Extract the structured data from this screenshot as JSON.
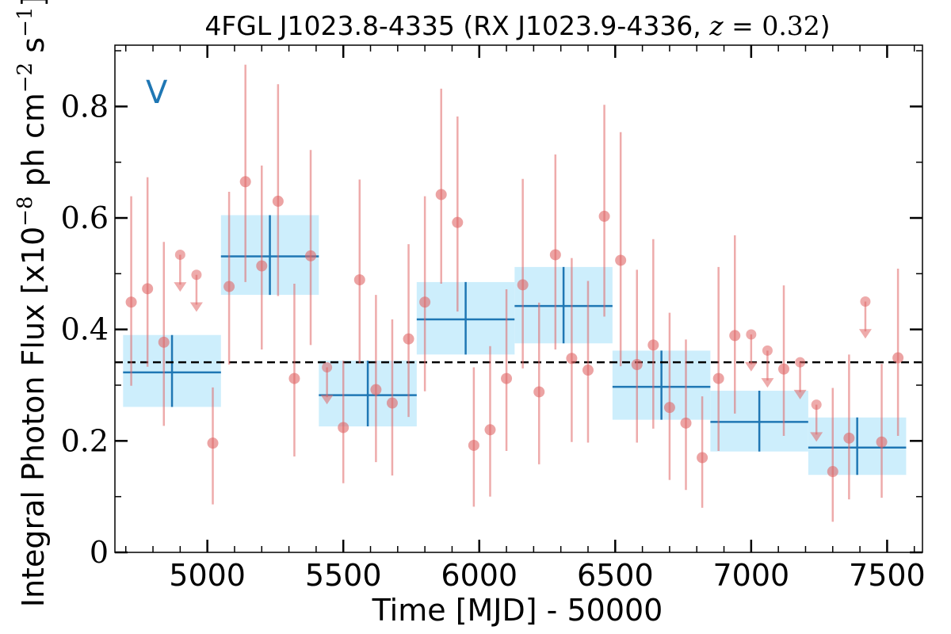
{
  "chart_data": {
    "type": "scatter",
    "title_parts": {
      "main": "4FGL J1023.8-4335 (RX J1023.9-4336, ",
      "z_var": "z",
      "z_eq": " = 0.32",
      "close": ")"
    },
    "xlabel": "Time [MJD] - 50000",
    "ylabel_parts": {
      "pre": "Integral Photon Flux [x10",
      "exp1": "−8",
      "mid": " ph cm",
      "exp2": "−2",
      "mid2": " s",
      "exp3": "−1",
      "post": "]"
    },
    "panel_label": "V",
    "xlim": [
      4660,
      7630
    ],
    "ylim": [
      0,
      0.91
    ],
    "x_ticks": [
      5000,
      5500,
      6000,
      6500,
      7000,
      7500
    ],
    "x_tick_labels": [
      "5000",
      "5500",
      "6000",
      "6500",
      "7000",
      "7500"
    ],
    "y_ticks": [
      0,
      0.2,
      0.4,
      0.6,
      0.8
    ],
    "y_tick_labels": [
      "0",
      "0.2",
      "0.4",
      "0.6",
      "0.8"
    ],
    "colors": {
      "points": "#e06666",
      "bins": "#1f77b4",
      "bin_fill": "#cdeefc",
      "mean_line": "#000000"
    },
    "mean_flux": 0.341,
    "short_bins": [
      {
        "x": 4720,
        "y": 0.449,
        "yerr_low": 0.15,
        "yerr_high": 0.19
      },
      {
        "x": 4780,
        "y": 0.473,
        "yerr_low": 0.14,
        "yerr_high": 0.2
      },
      {
        "x": 4840,
        "y": 0.377,
        "yerr_low": 0.15,
        "yerr_high": 0.18
      },
      {
        "x": 4900,
        "y": 0.534,
        "upper_limit": true
      },
      {
        "x": 4960,
        "y": 0.498,
        "upper_limit": true
      },
      {
        "x": 5020,
        "y": 0.196,
        "yerr_low": 0.11,
        "yerr_high": 0.1
      },
      {
        "x": 5080,
        "y": 0.477,
        "yerr_low": 0.14,
        "yerr_high": 0.17
      },
      {
        "x": 5140,
        "y": 0.665,
        "yerr_low": 0.18,
        "yerr_high": 0.21
      },
      {
        "x": 5200,
        "y": 0.514,
        "yerr_low": 0.15,
        "yerr_high": 0.18
      },
      {
        "x": 5260,
        "y": 0.63,
        "yerr_low": 0.17,
        "yerr_high": 0.21
      },
      {
        "x": 5320,
        "y": 0.312,
        "yerr_low": 0.14,
        "yerr_high": 0.17
      },
      {
        "x": 5380,
        "y": 0.532,
        "yerr_low": 0.16,
        "yerr_high": 0.19
      },
      {
        "x": 5440,
        "y": 0.332,
        "upper_limit": true
      },
      {
        "x": 5500,
        "y": 0.224,
        "yerr_low": 0.1,
        "yerr_high": 0.12
      },
      {
        "x": 5560,
        "y": 0.489,
        "yerr_low": 0.15,
        "yerr_high": 0.18
      },
      {
        "x": 5620,
        "y": 0.292,
        "yerr_low": 0.13,
        "yerr_high": 0.17
      },
      {
        "x": 5680,
        "y": 0.268,
        "yerr_low": 0.13,
        "yerr_high": 0.15
      },
      {
        "x": 5740,
        "y": 0.383,
        "yerr_low": 0.14,
        "yerr_high": 0.17
      },
      {
        "x": 5800,
        "y": 0.449,
        "yerr_low": 0.16,
        "yerr_high": 0.19
      },
      {
        "x": 5860,
        "y": 0.642,
        "yerr_low": 0.16,
        "yerr_high": 0.19
      },
      {
        "x": 5920,
        "y": 0.592,
        "yerr_low": 0.16,
        "yerr_high": 0.19
      },
      {
        "x": 5980,
        "y": 0.192,
        "yerr_low": 0.11,
        "yerr_high": 0.14
      },
      {
        "x": 6040,
        "y": 0.22,
        "yerr_low": 0.12,
        "yerr_high": 0.15
      },
      {
        "x": 6100,
        "y": 0.312,
        "yerr_low": 0.13,
        "yerr_high": 0.16
      },
      {
        "x": 6160,
        "y": 0.48,
        "yerr_low": 0.15,
        "yerr_high": 0.19
      },
      {
        "x": 6220,
        "y": 0.288,
        "yerr_low": 0.13,
        "yerr_high": 0.16
      },
      {
        "x": 6280,
        "y": 0.534,
        "yerr_low": 0.17,
        "yerr_high": 0.18
      },
      {
        "x": 6340,
        "y": 0.348,
        "yerr_low": 0.15,
        "yerr_high": 0.18
      },
      {
        "x": 6400,
        "y": 0.327,
        "yerr_low": 0.13,
        "yerr_high": 0.16
      },
      {
        "x": 6460,
        "y": 0.603,
        "yerr_low": 0.18,
        "yerr_high": 0.2
      },
      {
        "x": 6520,
        "y": 0.524,
        "yerr_low": 0.19,
        "yerr_high": 0.23
      },
      {
        "x": 6580,
        "y": 0.337,
        "yerr_low": 0.14,
        "yerr_high": 0.17
      },
      {
        "x": 6640,
        "y": 0.372,
        "yerr_low": 0.15,
        "yerr_high": 0.19
      },
      {
        "x": 6700,
        "y": 0.26,
        "yerr_low": 0.13,
        "yerr_high": 0.17
      },
      {
        "x": 6760,
        "y": 0.232,
        "yerr_low": 0.12,
        "yerr_high": 0.15
      },
      {
        "x": 6820,
        "y": 0.17,
        "yerr_low": 0.09,
        "yerr_high": 0.11
      },
      {
        "x": 6880,
        "y": 0.312,
        "yerr_low": 0.13,
        "yerr_high": 0.2
      },
      {
        "x": 6940,
        "y": 0.389,
        "yerr_low": 0.14,
        "yerr_high": 0.18
      },
      {
        "x": 7000,
        "y": 0.391,
        "upper_limit": true
      },
      {
        "x": 7060,
        "y": 0.362,
        "upper_limit": true
      },
      {
        "x": 7120,
        "y": 0.329,
        "yerr_low": 0.12,
        "yerr_high": 0.15
      },
      {
        "x": 7180,
        "y": 0.341,
        "upper_limit": true
      },
      {
        "x": 7240,
        "y": 0.265,
        "upper_limit": true
      },
      {
        "x": 7300,
        "y": 0.145,
        "yerr_low": 0.09,
        "yerr_high": 0.15
      },
      {
        "x": 7360,
        "y": 0.205,
        "yerr_low": 0.11,
        "yerr_high": 0.15
      },
      {
        "x": 7420,
        "y": 0.45,
        "upper_limit": true
      },
      {
        "x": 7480,
        "y": 0.198,
        "yerr_low": 0.1,
        "yerr_high": 0.14
      },
      {
        "x": 7540,
        "y": 0.349,
        "yerr_low": 0.14,
        "yerr_high": 0.16
      }
    ],
    "long_bins": [
      {
        "x_start": 4690,
        "x_end": 5050,
        "y": 0.323,
        "y_low": 0.261,
        "y_high": 0.39
      },
      {
        "x_start": 5050,
        "x_end": 5410,
        "y": 0.531,
        "y_low": 0.462,
        "y_high": 0.605
      },
      {
        "x_start": 5410,
        "x_end": 5770,
        "y": 0.282,
        "y_low": 0.226,
        "y_high": 0.344
      },
      {
        "x_start": 5770,
        "x_end": 6130,
        "y": 0.418,
        "y_low": 0.355,
        "y_high": 0.485
      },
      {
        "x_start": 6130,
        "x_end": 6490,
        "y": 0.442,
        "y_low": 0.375,
        "y_high": 0.512
      },
      {
        "x_start": 6490,
        "x_end": 6850,
        "y": 0.297,
        "y_low": 0.238,
        "y_high": 0.362
      },
      {
        "x_start": 6850,
        "x_end": 7210,
        "y": 0.234,
        "y_low": 0.181,
        "y_high": 0.29
      },
      {
        "x_start": 7210,
        "x_end": 7570,
        "y": 0.188,
        "y_low": 0.139,
        "y_high": 0.242
      }
    ]
  }
}
